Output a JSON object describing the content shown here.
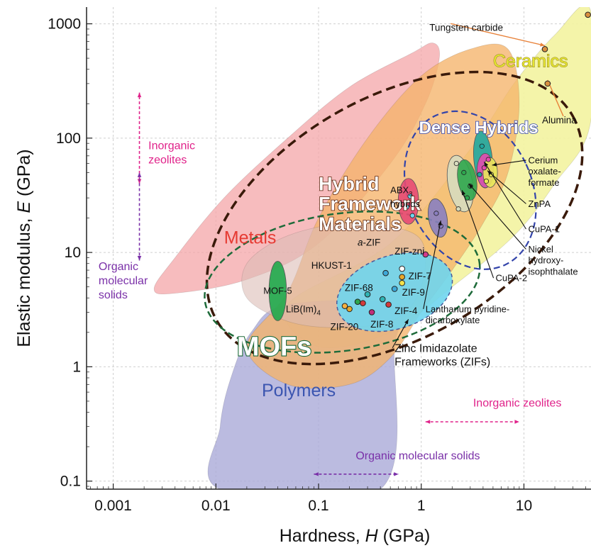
{
  "chart_data": {
    "type": "scatter",
    "x_scale": "log",
    "y_scale": "log",
    "xlim": [
      0.00055,
      45
    ],
    "ylim": [
      0.085,
      1400
    ],
    "grid": true,
    "xlabel_pre": "Hardness, ",
    "xlabel_sym": "H",
    "xlabel_unit": " (GPa)",
    "ylabel_pre": "Elastic modulus, ",
    "ylabel_sym": "E",
    "ylabel_unit": " (GPa)",
    "x_ticks": [
      {
        "value": 0.001,
        "label": "0.001"
      },
      {
        "value": 0.01,
        "label": "0.01"
      },
      {
        "value": 0.1,
        "label": "0.1"
      },
      {
        "value": 1,
        "label": "1"
      },
      {
        "value": 10,
        "label": "10"
      }
    ],
    "y_ticks": [
      {
        "value": 0.1,
        "label": "0.1"
      },
      {
        "value": 1,
        "label": "1"
      },
      {
        "value": 10,
        "label": "10"
      },
      {
        "value": 100,
        "label": "100"
      },
      {
        "value": 1000,
        "label": "1000"
      }
    ],
    "regions": [
      {
        "name": "Ceramics",
        "color": "#f3f3a0",
        "opacity": 0.9,
        "label_x": 5.0,
        "label_y": 420,
        "label_color": "#e6e630",
        "polygon": [
          [
            0.05,
            3.5
          ],
          [
            0.5,
            12
          ],
          [
            3,
            80
          ],
          [
            8,
            300
          ],
          [
            20,
            800
          ],
          [
            44,
            1350
          ],
          [
            44,
            130
          ],
          [
            20,
            40
          ],
          [
            8,
            14
          ],
          [
            2,
            5
          ],
          [
            0.5,
            2
          ],
          [
            0.1,
            1.5
          ]
        ]
      },
      {
        "name": "Metals",
        "color": "#f4a6a8",
        "opacity": 0.75,
        "label_x": 0.012,
        "label_y": 12,
        "label_color": "#e63a32",
        "polygon": [
          [
            0.0025,
            4.8
          ],
          [
            0.004,
            9
          ],
          [
            0.012,
            30
          ],
          [
            0.05,
            100
          ],
          [
            0.2,
            280
          ],
          [
            0.8,
            550
          ],
          [
            1.3,
            680
          ],
          [
            1.5,
            500
          ],
          [
            1.1,
            200
          ],
          [
            0.5,
            60
          ],
          [
            0.1,
            12
          ],
          [
            0.02,
            5.8
          ],
          [
            0.004,
            4.4
          ]
        ]
      },
      {
        "name": "Polymers",
        "color": "#aaaad8",
        "opacity": 0.8,
        "label_x": 0.028,
        "label_y": 0.55,
        "label_color": "#3b55b0",
        "polygon": [
          [
            0.011,
            0.085
          ],
          [
            0.4,
            0.085
          ],
          [
            0.55,
            1.5
          ],
          [
            0.62,
            3.5
          ],
          [
            0.05,
            3.5
          ],
          [
            0.022,
            2
          ],
          [
            0.014,
            0.8
          ],
          [
            0.011,
            0.3
          ]
        ]
      },
      {
        "name": "",
        "color": "#f5b46a",
        "opacity": 0.78,
        "polygon": [
          [
            0.02,
            1.5
          ],
          [
            0.05,
            4.5
          ],
          [
            0.1,
            20
          ],
          [
            0.3,
            100
          ],
          [
            1,
            350
          ],
          [
            3,
            600
          ],
          [
            7,
            600
          ],
          [
            9,
            200
          ],
          [
            7,
            50
          ],
          [
            4,
            18
          ],
          [
            2,
            7
          ],
          [
            1,
            3
          ],
          [
            0.5,
            1.2
          ],
          [
            0.2,
            0.7
          ],
          [
            0.05,
            0.7
          ]
        ]
      },
      {
        "name": "",
        "color": "#dcbdb5",
        "opacity": 0.6,
        "polygon": [
          [
            0.02,
            4
          ],
          [
            0.02,
            8
          ],
          [
            0.05,
            14
          ],
          [
            0.2,
            18
          ],
          [
            0.8,
            15
          ],
          [
            1.1,
            9
          ],
          [
            0.9,
            4
          ],
          [
            0.5,
            2.5
          ],
          [
            0.15,
            2.2
          ],
          [
            0.05,
            2.5
          ]
        ]
      }
    ],
    "ellipses": [
      {
        "name": "Hybrid Framework Materials",
        "cx": 0.55,
        "cy": 20,
        "rx_dec": 2.0,
        "ry_dec": 1.05,
        "angle": -30,
        "stroke": "#3a1a0a",
        "dash": "13,7",
        "width": 3.5,
        "label_color": "#ffffff",
        "label_stroke": "#5a2008",
        "label_x": 0.1,
        "label_y": 35,
        "label_lines": [
          "Hybrid",
          "Framework",
          "Materials"
        ]
      },
      {
        "name": "MOFs",
        "cx": 0.17,
        "cy": 5.5,
        "rx_dec": 1.35,
        "ry_dec": 0.6,
        "angle": -8,
        "stroke": "#1e6b3a",
        "dash": "9,5",
        "width": 2.5,
        "label_color": "#ffffff",
        "label_stroke": "#1e6b3a",
        "label_x": 0.016,
        "label_y": 1.25,
        "label_lines": [
          "MOFs"
        ]
      },
      {
        "name": "Dense Hybrids",
        "cx": 3.0,
        "cy": 35,
        "rx_dec": 0.6,
        "ry_dec": 0.72,
        "angle": -25,
        "stroke": "#3344aa",
        "dash": "9,5",
        "width": 2.2,
        "label_color": "#ffffff",
        "label_stroke": "#3344aa",
        "label_x": 0.95,
        "label_y": 110,
        "label_lines": [
          "Dense Hybrids"
        ]
      },
      {
        "name": "Zinc Imidazolate Frameworks (ZIFs)",
        "cx": 0.55,
        "cy": 4.5,
        "rx_dec": 0.58,
        "ry_dec": 0.32,
        "angle": -18,
        "stroke": "#4a5a9a",
        "dash": "5,4",
        "width": 1.5,
        "fill": "#6fd5ee",
        "fill_opacity": 0.9
      }
    ],
    "subgroups": [
      {
        "name": "MOF-5",
        "cx": 0.04,
        "cy": 4.6,
        "rx_dec": 0.085,
        "ry_dec": 0.26,
        "angle": 0,
        "fill": "#1fa84a"
      },
      {
        "name": "ABX3 hybrids",
        "cx": 0.75,
        "cy": 28,
        "rx_dec": 0.1,
        "ry_dec": 0.2,
        "angle": 0,
        "fill": "#e64a73"
      },
      {
        "name": "Lanthanum pyridine-dicarboxylate",
        "cx": 1.45,
        "cy": 20,
        "rx_dec": 0.09,
        "ry_dec": 0.17,
        "angle": -10,
        "fill": "#8a7fc0"
      },
      {
        "name": "CuPA-2",
        "cx": 2.4,
        "cy": 40,
        "rx_dec": 0.12,
        "ry_dec": 0.25,
        "angle": -10,
        "fill": "#d7dcbe"
      },
      {
        "name": "Nickel hydroxy-isophthalate",
        "cx": 2.8,
        "cy": 43,
        "rx_dec": 0.09,
        "ry_dec": 0.18,
        "angle": -10,
        "fill": "#2da64e"
      },
      {
        "name": "CuPA-1",
        "cx": 4.0,
        "cy": 65,
        "rx_dec": 0.09,
        "ry_dec": 0.25,
        "angle": -5,
        "fill": "#1fa7a0"
      },
      {
        "name": "ZnPA",
        "cx": 4.2,
        "cy": 52,
        "rx_dec": 0.08,
        "ry_dec": 0.15,
        "angle": 0,
        "fill": "#e64ab0"
      },
      {
        "name": "Cerium oxalate-formate",
        "cx": 4.7,
        "cy": 50,
        "rx_dec": 0.07,
        "ry_dec": 0.13,
        "angle": 0,
        "fill": "#e8e85a"
      }
    ],
    "points": [
      {
        "label": "Tungsten carbide",
        "x": 16,
        "y": 600,
        "fill": "#d99040",
        "lx": 1.2,
        "ly": 870,
        "anchor": "start",
        "arrow": true
      },
      {
        "label": "",
        "x": 42,
        "y": 1200,
        "fill": "#d99040"
      },
      {
        "label": "Alumina",
        "x": 17,
        "y": 300,
        "fill": "#d99040",
        "lx": 15,
        "ly": 135,
        "anchor": "start",
        "arrow": true
      },
      {
        "label": "a-ZIF",
        "x": 0.65,
        "y": 7.2,
        "fill": "#ffffff",
        "lx": 0.24,
        "ly": 11.5,
        "anchor": "start"
      },
      {
        "label": "ZIF-zni",
        "x": 1.1,
        "y": 9.6,
        "fill": "#d43a8a",
        "lx": 0.55,
        "ly": 9.6,
        "anchor": "start"
      },
      {
        "label": "ZIF-7",
        "x": 0.65,
        "y": 6.1,
        "fill": "#e8a82b",
        "lx": 0.75,
        "ly": 5.8,
        "anchor": "start"
      },
      {
        "label": "",
        "x": 0.65,
        "y": 5.4,
        "fill": "#f5e24a"
      },
      {
        "label": "ZIF-9",
        "x": 0.55,
        "y": 4.8,
        "fill": "#3ea8d8",
        "lx": 0.65,
        "ly": 4.2,
        "anchor": "start"
      },
      {
        "label": "HKUST-1",
        "x": 0.45,
        "y": 6.6,
        "fill": "#3ea8d8",
        "lx": 0.085,
        "ly": 7.2,
        "anchor": "start"
      },
      {
        "label": "ZIF-68",
        "x": 0.3,
        "y": 4.3,
        "fill": "#2fb3b3",
        "lx": 0.18,
        "ly": 4.6,
        "anchor": "start"
      },
      {
        "label": "",
        "x": 0.27,
        "y": 3.6,
        "fill": "#d43a3a"
      },
      {
        "label": "",
        "x": 0.42,
        "y": 3.9,
        "fill": "#2fb3b3"
      },
      {
        "label": "ZIF-4",
        "x": 0.48,
        "y": 3.5,
        "fill": "#d43a3a",
        "lx": 0.55,
        "ly": 2.9,
        "anchor": "start"
      },
      {
        "label": "ZIF-8",
        "x": 0.33,
        "y": 3.0,
        "fill": "#c0307a",
        "lx": 0.32,
        "ly": 2.2,
        "anchor": "start"
      },
      {
        "label": "LiB(Im)4",
        "x": 0.18,
        "y": 3.4,
        "fill": "#f5b040",
        "lx": 0.048,
        "ly": 3.0,
        "anchor": "start"
      },
      {
        "label": "ZIF-20",
        "x": 0.24,
        "y": 3.7,
        "fill": "#2da64e",
        "lx": 0.13,
        "ly": 2.1,
        "anchor": "start"
      },
      {
        "label": "",
        "x": 0.2,
        "y": 3.2,
        "fill": "#e8a82b"
      }
    ],
    "ellipse_dots": [
      {
        "x": 0.72,
        "y": 25,
        "fill": "#6fd5ee"
      },
      {
        "x": 0.78,
        "y": 31,
        "fill": "#6fd5ee"
      },
      {
        "x": 0.82,
        "y": 21,
        "fill": "#6fd5ee"
      },
      {
        "x": 1.4,
        "y": 22,
        "fill": "#8a7fc0"
      },
      {
        "x": 1.55,
        "y": 17,
        "fill": "#8a7fc0"
      },
      {
        "x": 2.2,
        "y": 60,
        "fill": "#d7dcbe"
      },
      {
        "x": 2.3,
        "y": 24,
        "fill": "#d7dcbe"
      },
      {
        "x": 2.6,
        "y": 50,
        "fill": "#2da64e"
      },
      {
        "x": 3.0,
        "y": 38,
        "fill": "#2da64e"
      },
      {
        "x": 2.8,
        "y": 30,
        "fill": "#2da64e"
      },
      {
        "x": 3.9,
        "y": 85,
        "fill": "#1fa7a0"
      },
      {
        "x": 3.7,
        "y": 48,
        "fill": "#1fa7a0"
      },
      {
        "x": 4.1,
        "y": 55,
        "fill": "#e64ab0"
      },
      {
        "x": 4.3,
        "y": 42,
        "fill": "#e8e85a"
      },
      {
        "x": 4.8,
        "y": 48,
        "fill": "#e8e85a"
      },
      {
        "x": 4.5,
        "y": 65,
        "fill": "#e64ab0"
      }
    ],
    "annotations": [
      {
        "lines": [
          "ABX",
          "hybrids"
        ],
        "sub": "3",
        "x": 0.5,
        "y": 33,
        "anchor": "start",
        "color": "#111111"
      },
      {
        "lines": [
          "Cerium",
          "oxalate-",
          "formate"
        ],
        "x": 11,
        "y": 60,
        "anchor": "start",
        "color": "#111111",
        "tip_x": 4.9,
        "tip_y": 58
      },
      {
        "lines": [
          "ZnPA"
        ],
        "x": 11,
        "y": 25,
        "anchor": "start",
        "color": "#111111",
        "tip_x": 4.4,
        "tip_y": 52
      },
      {
        "lines": [
          "CuPA-1"
        ],
        "x": 11,
        "y": 15,
        "anchor": "start",
        "color": "#111111",
        "tip_x": 4.1,
        "tip_y": 62
      },
      {
        "lines": [
          "Nickel",
          "hydroxy-",
          "isophthalate"
        ],
        "x": 11,
        "y": 10,
        "anchor": "start",
        "color": "#111111",
        "tip_x": 2.9,
        "tip_y": 40
      },
      {
        "lines": [
          "CuPA-2"
        ],
        "x": 5.3,
        "y": 5.6,
        "anchor": "start",
        "color": "#111111",
        "tip_x": 2.5,
        "tip_y": 35
      },
      {
        "lines": [
          "Lanthanum pyridine-",
          "dicarboxylate"
        ],
        "x": 1.1,
        "y": 3.0,
        "anchor": "start",
        "color": "#111111",
        "tip_x": 1.55,
        "tip_y": 19
      },
      {
        "lines": [
          "Zinc Imidazolate",
          "Frameworks (ZIFs)"
        ],
        "x": 0.55,
        "y": 1.35,
        "anchor": "start",
        "color": "#111111",
        "big": true,
        "tip_x": 0.75,
        "tip_y": 2.6
      }
    ],
    "ranges": [
      {
        "label": "Inorganic zeolites",
        "color": "#e0228a",
        "orientation": "vertical",
        "x": 0.0018,
        "from": 40,
        "to": 250,
        "label_x": 0.0022,
        "label_y": 80,
        "lines": [
          "Inorganic",
          "zeolites"
        ]
      },
      {
        "label": "Organic molecular solids",
        "color": "#7a30a8",
        "orientation": "vertical",
        "x": 0.0018,
        "from": 8.5,
        "to": 50,
        "label_x": 0.00072,
        "label_y": 7,
        "lines": [
          "Organic",
          "molecular",
          "solids"
        ]
      },
      {
        "label": "Inorganic zeolites",
        "color": "#e0228a",
        "orientation": "horizontal",
        "y": 0.33,
        "from": 1.1,
        "to": 9,
        "label_x": 3.2,
        "label_y": 0.45,
        "lines": [
          "Inorganic zeolites"
        ]
      },
      {
        "label": "Organic molecular solids",
        "color": "#7a30a8",
        "orientation": "horizontal",
        "y": 0.115,
        "from": 0.09,
        "to": 0.6,
        "label_x": 0.23,
        "label_y": 0.155,
        "lines": [
          "Organic molecular solids"
        ]
      }
    ]
  }
}
